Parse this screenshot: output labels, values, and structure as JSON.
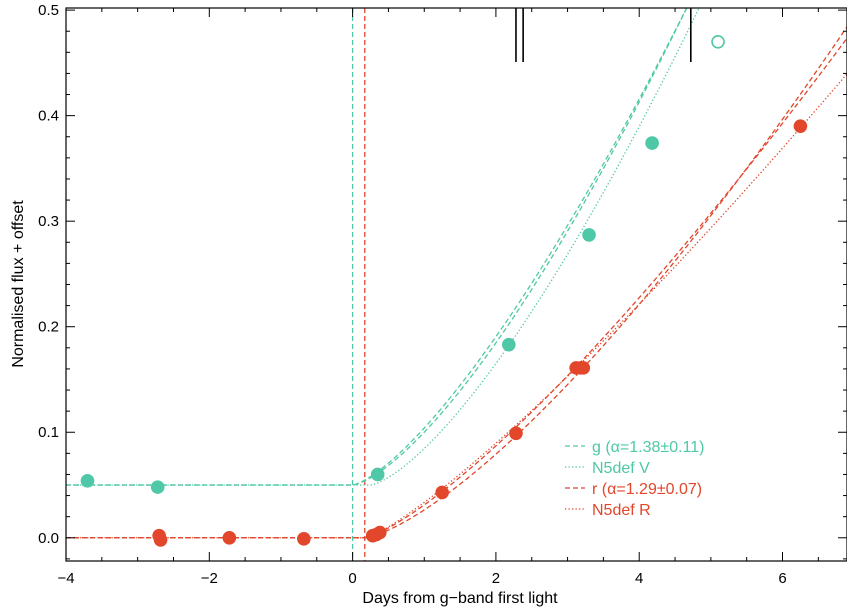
{
  "chart_data": {
    "type": "line",
    "xlabel": "Days from g−band first light",
    "ylabel": "Normalised flux + offset",
    "xlim": [
      -4,
      6.9
    ],
    "ylim": [
      -0.022,
      0.502
    ],
    "x_ticks": [
      -4,
      -2,
      0,
      2,
      4,
      6
    ],
    "x_tick_labels": [
      "−4",
      "−2",
      "0",
      "2",
      "4",
      "6"
    ],
    "y_ticks": [
      0.0,
      0.1,
      0.2,
      0.3,
      0.4,
      0.5
    ],
    "y_tick_labels": [
      "0.0",
      "0.1",
      "0.2",
      "0.3",
      "0.4",
      "0.5"
    ],
    "grid": false,
    "legend_position": "lower-right",
    "colors": {
      "g": "#4ec8a6",
      "r": "#e2462b",
      "spectra_markers": "#000000"
    },
    "vertical_lines": [
      {
        "x": 0.0,
        "color": "#4ec8a6",
        "style": "dashed"
      },
      {
        "x": 0.17,
        "color": "#e2462b",
        "style": "dashed"
      }
    ],
    "spectra_epochs": [
      2.28,
      2.38,
      4.72
    ],
    "series": [
      {
        "name": "g (α=1.38±0.11)",
        "band": "g",
        "kind": "data",
        "color": "#4ec8a6",
        "x": [
          -3.7,
          -2.72,
          0.35,
          2.18,
          3.3,
          4.18
        ],
        "y": [
          0.054,
          0.048,
          0.06,
          0.183,
          0.287,
          0.374
        ]
      },
      {
        "name": "g excluded point",
        "band": "g",
        "kind": "data-open",
        "color": "#4ec8a6",
        "x": [
          5.1
        ],
        "y": [
          0.47
        ]
      },
      {
        "name": "g (α=1.38±0.11)",
        "band": "g",
        "kind": "fit",
        "style": "dashed",
        "color": "#4ec8a6",
        "pre_level": 0.05,
        "t0": 0.0,
        "scale": 0.054,
        "alpha": 1.38
      },
      {
        "name": "g fit range",
        "band": "g",
        "kind": "fit-alt",
        "style": "dashed",
        "color": "#4ec8a6",
        "pre_level": 0.05,
        "t0": 0.0,
        "scale": 0.05,
        "alpha": 1.43
      },
      {
        "name": "N5def V",
        "band": "g",
        "kind": "model",
        "style": "dotted",
        "color": "#4ec8a6",
        "pre_level": 0.05,
        "t0": 0.25,
        "scale": 0.052,
        "alpha": 1.42
      },
      {
        "name": "r (α=1.29±0.07)",
        "band": "r",
        "kind": "data",
        "color": "#e2462b",
        "x": [
          -2.7,
          -2.68,
          -1.72,
          -0.68,
          0.28,
          0.33,
          0.38,
          1.25,
          2.28,
          3.12,
          3.18,
          3.22,
          6.25
        ],
        "y": [
          0.002,
          -0.002,
          0.0,
          -0.001,
          0.002,
          0.003,
          0.005,
          0.043,
          0.099,
          0.161,
          0.161,
          0.161,
          0.39
        ]
      },
      {
        "name": "r (α=1.29±0.07)",
        "band": "r",
        "kind": "fit",
        "style": "dashed",
        "color": "#e2462b",
        "pre_level": 0.0,
        "t0": 0.17,
        "scale": 0.0397,
        "alpha": 1.3
      },
      {
        "name": "r fit range",
        "band": "r",
        "kind": "fit-alt",
        "style": "dashed",
        "color": "#e2462b",
        "pre_level": 0.0,
        "t0": 0.17,
        "scale": 0.0342,
        "alpha": 1.39
      },
      {
        "name": "N5def R",
        "band": "r",
        "kind": "model",
        "style": "dotted",
        "color": "#e2462b",
        "pre_level": 0.0,
        "t0": 0.2,
        "scale": 0.044,
        "alpha": 1.21
      }
    ],
    "legend": [
      {
        "label": "g (α=1.38±0.11)",
        "color": "#4ec8a6",
        "style": "dashed"
      },
      {
        "label": "N5def V",
        "color": "#4ec8a6",
        "style": "dotted"
      },
      {
        "label": "r (α=1.29±0.07)",
        "color": "#e2462b",
        "style": "dashed"
      },
      {
        "label": "N5def R",
        "color": "#e2462b",
        "style": "dotted"
      }
    ]
  }
}
